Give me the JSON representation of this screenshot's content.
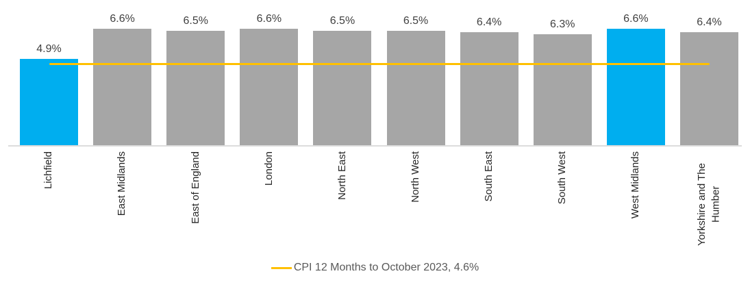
{
  "chart_data": {
    "type": "bar",
    "title": "",
    "xlabel": "",
    "ylabel": "",
    "ylim": [
      0,
      8.2
    ],
    "grid": false,
    "legend_position": "bottom-center",
    "categories": [
      "Lichfield",
      "East Midlands",
      "East of England",
      "London",
      "North East",
      "North West",
      "South East",
      "South West",
      "West Midlands",
      "Yorkshire and The Humber"
    ],
    "values": [
      4.9,
      6.6,
      6.5,
      6.6,
      6.5,
      6.5,
      6.4,
      6.3,
      6.6,
      6.4
    ],
    "value_labels": [
      "4.9%",
      "6.6%",
      "6.5%",
      "6.6%",
      "6.5%",
      "6.5%",
      "6.4%",
      "6.3%",
      "6.6%",
      "6.4%"
    ],
    "bar_colors": [
      "#00AEEF",
      "#A6A6A6",
      "#A6A6A6",
      "#A6A6A6",
      "#A6A6A6",
      "#A6A6A6",
      "#A6A6A6",
      "#A6A6A6",
      "#00AEEF",
      "#A6A6A6"
    ],
    "highlight_color": "#00AEEF",
    "default_bar_color": "#A6A6A6",
    "reference_line": {
      "value": 4.6,
      "label": "CPI 12 Months to October 2023, 4.6%",
      "color": "#FFC000"
    }
  }
}
